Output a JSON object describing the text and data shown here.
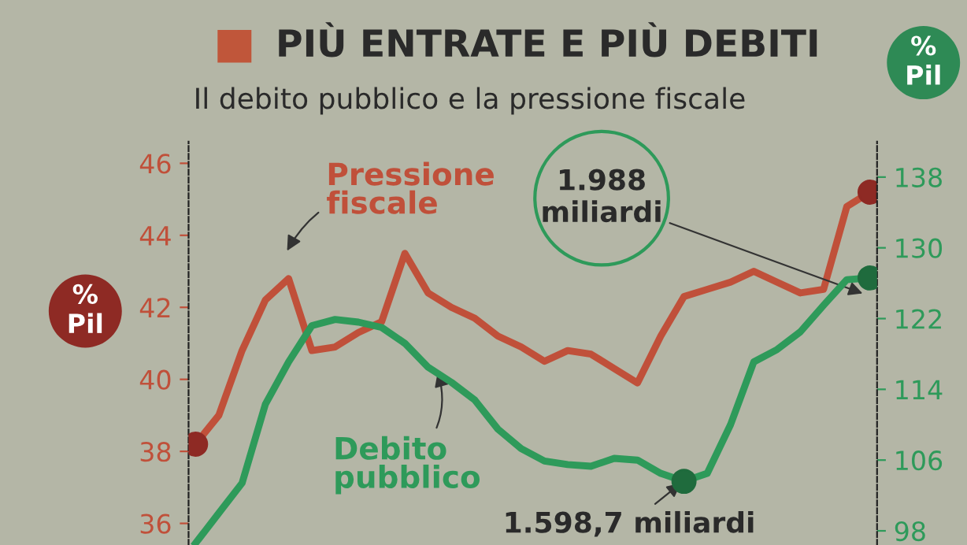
{
  "chart_data": {
    "type": "line",
    "title": "PIÙ ENTRATE E PIÙ DEBITI",
    "subtitle": "Il debito pubblico e la pressione fiscale",
    "ylabel": "%\nPil",
    "y2label": "%\nPil",
    "categories": [
      null,
      null,
      null,
      null,
      null,
      null,
      null,
      null,
      null,
      null,
      null,
      null,
      null,
      null,
      null,
      null,
      null,
      null,
      null,
      null,
      null,
      null,
      null,
      null,
      null,
      null,
      null,
      null,
      null,
      null
    ],
    "series": [
      {
        "name": "Pressione fiscale",
        "color": "#c0503a",
        "values": [
          38.2,
          39.0,
          40.8,
          42.2,
          42.8,
          40.8,
          40.9,
          41.3,
          41.6,
          43.5,
          42.4,
          42.0,
          41.7,
          41.2,
          40.9,
          40.5,
          40.8,
          40.7,
          40.3,
          39.9,
          41.2,
          42.3,
          42.5,
          42.7,
          43.0,
          42.7,
          42.4,
          42.5,
          44.8,
          45.2
        ]
      },
      {
        "name": "Debito pubblico",
        "color": "#2e9a5a",
        "axis": "y2",
        "values": [
          96.6,
          100.0,
          103.4,
          112.3,
          117.1,
          121.2,
          121.9,
          121.6,
          121.0,
          119.2,
          116.5,
          114.8,
          112.8,
          109.5,
          107.3,
          105.9,
          105.5,
          105.3,
          106.2,
          106.0,
          104.5,
          103.6,
          104.5,
          110.0,
          117.1,
          118.5,
          120.5,
          123.5,
          126.4,
          126.6
        ]
      },
      {
        "type": "scatter",
        "color": "#8e2a24",
        "marker": "circle",
        "values": [
          38.2,
          null,
          null,
          null,
          null,
          null,
          null,
          null,
          null,
          null,
          null,
          null,
          null,
          null,
          null,
          null,
          null,
          null,
          null,
          null,
          null,
          null,
          null,
          null,
          null,
          null,
          null,
          null,
          null,
          45.2
        ]
      },
      {
        "type": "scatter",
        "color": "#1f6b3d",
        "marker": "circle",
        "axis": "y2",
        "values": [
          null,
          null,
          null,
          null,
          null,
          null,
          null,
          null,
          null,
          null,
          null,
          null,
          null,
          null,
          null,
          null,
          null,
          null,
          null,
          null,
          null,
          103.6,
          null,
          null,
          null,
          null,
          null,
          null,
          null,
          126.6
        ]
      }
    ],
    "ylim": [
      35.4,
      46.6
    ],
    "yticks": [
      36,
      38,
      40,
      42,
      44,
      46
    ],
    "y2lim": [
      96.4,
      142
    ],
    "y2ticks": [
      98,
      106,
      114,
      122,
      130,
      138
    ],
    "annotations": [
      "1.988\nmiliardi",
      "1.598,7 miliardi"
    ],
    "grid": false,
    "legend": false,
    "line_style": "solid"
  }
}
